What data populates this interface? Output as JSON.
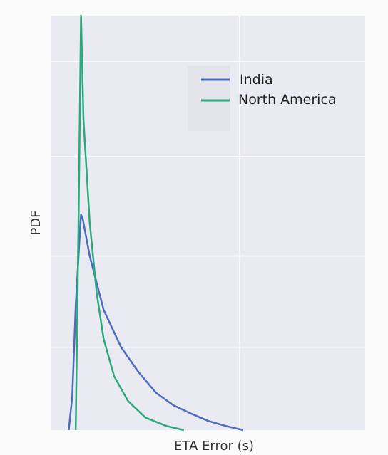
{
  "chart_data": {
    "type": "line",
    "title": "",
    "xlabel": "ETA Error (s)",
    "ylabel": "PDF",
    "grid": true,
    "legend_position": "top-right",
    "x_ticks_visible": false,
    "y_ticks_visible": false,
    "xlim": [
      -0.5,
      8.5
    ],
    "ylim": [
      0,
      1.0
    ],
    "series": [
      {
        "name": "India",
        "color": "#4c6cbf",
        "x": [
          0.0,
          0.1,
          0.2,
          0.3,
          0.35,
          0.4,
          0.6,
          1.0,
          1.5,
          2.0,
          2.5,
          3.0,
          3.5,
          4.0,
          4.5,
          5.0
        ],
        "y": [
          0.0,
          0.08,
          0.3,
          0.45,
          0.52,
          0.51,
          0.42,
          0.29,
          0.2,
          0.14,
          0.09,
          0.06,
          0.04,
          0.022,
          0.01,
          0.0
        ]
      },
      {
        "name": "North America",
        "color": "#2aaa7a",
        "x": [
          0.2,
          0.28,
          0.35,
          0.42,
          0.6,
          0.8,
          1.0,
          1.3,
          1.7,
          2.2,
          2.8,
          3.3
        ],
        "y": [
          0.0,
          0.5,
          1.0,
          0.75,
          0.5,
          0.33,
          0.22,
          0.13,
          0.07,
          0.03,
          0.01,
          0.0
        ]
      }
    ]
  }
}
